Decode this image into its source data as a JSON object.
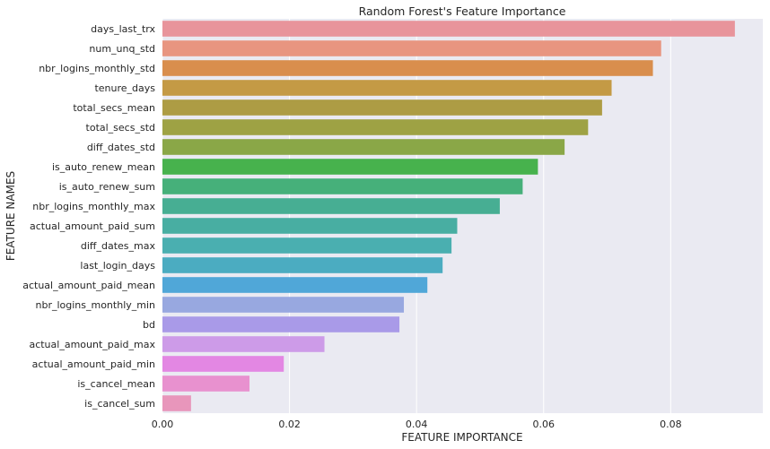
{
  "chart_data": {
    "type": "bar",
    "orientation": "horizontal",
    "title": "Random Forest's Feature Importance",
    "xlabel": "FEATURE IMPORTANCE",
    "ylabel": "FEATURE NAMES",
    "xlim": [
      0,
      0.0945
    ],
    "xticks": [
      "0.00",
      "0.02",
      "0.04",
      "0.06",
      "0.08"
    ],
    "grid": true,
    "categories": [
      "days_last_trx",
      "num_unq_std",
      "nbr_logins_monthly_std",
      "tenure_days",
      "total_secs_mean",
      "total_secs_std",
      "diff_dates_std",
      "is_auto_renew_mean",
      "is_auto_renew_sum",
      "nbr_logins_monthly_max",
      "actual_amount_paid_sum",
      "diff_dates_max",
      "last_login_days",
      "actual_amount_paid_mean",
      "nbr_logins_monthly_min",
      "bd",
      "actual_amount_paid_max",
      "actual_amount_paid_min",
      "is_cancel_mean",
      "is_cancel_sum"
    ],
    "values": [
      0.0901,
      0.0785,
      0.0772,
      0.0707,
      0.0692,
      0.067,
      0.0633,
      0.0591,
      0.0567,
      0.0531,
      0.0464,
      0.0455,
      0.0441,
      0.0417,
      0.038,
      0.0373,
      0.0255,
      0.0191,
      0.0137,
      0.0045
    ],
    "colors": [
      "#e8949b",
      "#e89580",
      "#d98e4d",
      "#c49a45",
      "#ad9c44",
      "#9ea244",
      "#8aa747",
      "#47b24d",
      "#46b07a",
      "#47ae93",
      "#48aea2",
      "#4aafb0",
      "#4bacc1",
      "#50a7d8",
      "#98a8e0",
      "#a99ae8",
      "#cd9be8",
      "#e387e3",
      "#e891cf",
      "#e896bb"
    ]
  }
}
